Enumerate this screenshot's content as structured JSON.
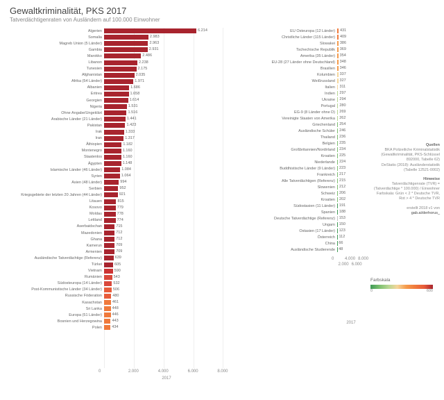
{
  "title": "Gewaltkriminalität, PKS 2017",
  "subtitle": "Tatverdächtigenraten von Ausländern auf 100.000 Einwohner",
  "axis_label": "2017",
  "left_axis_ticks": [
    0,
    2000,
    4000,
    6000,
    8000
  ],
  "left_axis_tick_labels": [
    "0",
    "2.000",
    "4.000",
    "6.000",
    "8.000"
  ],
  "right_axis_ticks": [
    0,
    2000,
    4000,
    6000,
    8000
  ],
  "left_max": 8400,
  "right_max": 8400,
  "colors": {
    "dark_red": "#a8242e",
    "mid_red_a": "#c33",
    "mid_red_b": "#d9483b",
    "orange_red": "#e85c3a",
    "orange": "#f07a3c",
    "lt_orange": "#f59b4c",
    "cream": "#f5d69b",
    "lt_green": "#b6d692",
    "green": "#7cbf6f",
    "dk_green": "#3f9b56",
    "grey": "#bfbfbf"
  },
  "left_data": [
    {
      "label": "Algerien",
      "value": 6214,
      "val_fmt": "6.214",
      "c": "dark_red"
    },
    {
      "label": "Somalia",
      "value": 2983,
      "val_fmt": "2.983",
      "c": "dark_red"
    },
    {
      "label": "Magreb Union (5 Länder)",
      "value": 2963,
      "val_fmt": "2.963",
      "c": "dark_red"
    },
    {
      "label": "Gambia",
      "value": 2931,
      "val_fmt": "2.931",
      "c": "dark_red"
    },
    {
      "label": "Marokko",
      "value": 2486,
      "val_fmt": "2.486",
      "c": "dark_red"
    },
    {
      "label": "Libanon",
      "value": 2238,
      "val_fmt": "2.238",
      "c": "dark_red"
    },
    {
      "label": "Tunesien",
      "value": 2175,
      "val_fmt": "2.175",
      "c": "dark_red"
    },
    {
      "label": "Afghanistan",
      "value": 2035,
      "val_fmt": "2.035",
      "c": "dark_red"
    },
    {
      "label": "Afrika (54 Länder)",
      "value": 1971,
      "val_fmt": "1.971",
      "c": "dark_red"
    },
    {
      "label": "Albanien",
      "value": 1686,
      "val_fmt": "1.686",
      "c": "dark_red"
    },
    {
      "label": "Eritrea",
      "value": 1658,
      "val_fmt": "1.658",
      "c": "dark_red"
    },
    {
      "label": "Georgien",
      "value": 1614,
      "val_fmt": "1.614",
      "c": "dark_red"
    },
    {
      "label": "Nigeria",
      "value": 1531,
      "val_fmt": "1.531",
      "c": "dark_red"
    },
    {
      "label": "Ohne Angabe/Ungeklärt",
      "value": 1516,
      "val_fmt": "1.516",
      "c": "dark_red"
    },
    {
      "label": "Arabische Länder (21 Länder)",
      "value": 1441,
      "val_fmt": "1.441",
      "c": "dark_red"
    },
    {
      "label": "Pakistan",
      "value": 1423,
      "val_fmt": "1.423",
      "c": "dark_red"
    },
    {
      "label": "Irak",
      "value": 1333,
      "val_fmt": "1.333",
      "c": "dark_red"
    },
    {
      "label": "Iran",
      "value": 1317,
      "val_fmt": "1.317",
      "c": "dark_red"
    },
    {
      "label": "Äthiopien",
      "value": 1182,
      "val_fmt": "1.182",
      "c": "dark_red"
    },
    {
      "label": "Montenegro",
      "value": 1160,
      "val_fmt": "1.160",
      "c": "dark_red"
    },
    {
      "label": "Staatenlos",
      "value": 1160,
      "val_fmt": "1.160",
      "c": "dark_red"
    },
    {
      "label": "Ägypten",
      "value": 1148,
      "val_fmt": "1.148",
      "c": "dark_red"
    },
    {
      "label": "Islamische Länder (46 Länder)",
      "value": 1084,
      "val_fmt": "1.084",
      "c": "dark_red"
    },
    {
      "label": "Syrien",
      "value": 1064,
      "val_fmt": "1.064",
      "c": "dark_red"
    },
    {
      "label": "Asien (48 Länder)",
      "value": 994,
      "val_fmt": "994",
      "c": "dark_red"
    },
    {
      "label": "Serbien",
      "value": 952,
      "val_fmt": "952",
      "c": "dark_red"
    },
    {
      "label": "Kriegsgebiete der letzten 20 Jahren (44 Länder)",
      "value": 921,
      "val_fmt": "921",
      "c": "dark_red"
    },
    {
      "label": "Litauen",
      "value": 815,
      "val_fmt": "815",
      "c": "dark_red"
    },
    {
      "label": "Kosovo",
      "value": 779,
      "val_fmt": "779",
      "c": "dark_red"
    },
    {
      "label": "Moldau",
      "value": 778,
      "val_fmt": "778",
      "c": "dark_red"
    },
    {
      "label": "Lettland",
      "value": 774,
      "val_fmt": "774",
      "c": "dark_red"
    },
    {
      "label": "Aserbaidschan",
      "value": 715,
      "val_fmt": "715",
      "c": "dark_red"
    },
    {
      "label": "Mazedonien",
      "value": 712,
      "val_fmt": "712",
      "c": "dark_red"
    },
    {
      "label": "Ghana",
      "value": 712,
      "val_fmt": "712",
      "c": "dark_red"
    },
    {
      "label": "Kamerun",
      "value": 709,
      "val_fmt": "709",
      "c": "dark_red"
    },
    {
      "label": "Armenien",
      "value": 709,
      "val_fmt": "709",
      "c": "dark_red"
    },
    {
      "label": "Ausländische Tatverdächtige (Referenz)",
      "value": 639,
      "val_fmt": "639",
      "c": "dark_red"
    },
    {
      "label": "Türkei",
      "value": 605,
      "val_fmt": "605",
      "c": "dark_red"
    },
    {
      "label": "Vietnam",
      "value": 590,
      "val_fmt": "590",
      "c": "mid_red_a"
    },
    {
      "label": "Rumänien",
      "value": 543,
      "val_fmt": "543",
      "c": "mid_red_b"
    },
    {
      "label": "Südosteuropa (14 Länder)",
      "value": 532,
      "val_fmt": "532",
      "c": "mid_red_b"
    },
    {
      "label": "Post-Kommunistische Länder (34 Länder)",
      "value": 506,
      "val_fmt": "506",
      "c": "orange_red"
    },
    {
      "label": "Russische Föderation",
      "value": 480,
      "val_fmt": "480",
      "c": "orange_red"
    },
    {
      "label": "Kasachstan",
      "value": 461,
      "val_fmt": "461",
      "c": "orange"
    },
    {
      "label": "Sri Lanka",
      "value": 448,
      "val_fmt": "448",
      "c": "orange"
    },
    {
      "label": "Europa (51 Länder)",
      "value": 446,
      "val_fmt": "446",
      "c": "orange"
    },
    {
      "label": "Bosnien und Herzegowina",
      "value": 443,
      "val_fmt": "443",
      "c": "orange"
    },
    {
      "label": "Polen",
      "value": 434,
      "val_fmt": "434",
      "c": "orange"
    }
  ],
  "right_data": [
    {
      "label": "EU Osteuropa (12 Länder)",
      "value": 431,
      "val_fmt": "431",
      "c": "orange"
    },
    {
      "label": "Christliche Länder (115 Länder)",
      "value": 409,
      "val_fmt": "409",
      "c": "orange"
    },
    {
      "label": "Slowakei",
      "value": 386,
      "val_fmt": "386",
      "c": "lt_orange"
    },
    {
      "label": "Tschechische Republik",
      "value": 369,
      "val_fmt": "369",
      "c": "lt_orange"
    },
    {
      "label": "Amerika (35 Länder)",
      "value": 354,
      "val_fmt": "354",
      "c": "lt_orange"
    },
    {
      "label": "EU-28 (27 Länder ohne Deutschland)",
      "value": 348,
      "val_fmt": "348",
      "c": "lt_orange"
    },
    {
      "label": "Brasilien",
      "value": 346,
      "val_fmt": "346",
      "c": "lt_orange"
    },
    {
      "label": "Kolumbien",
      "value": 337,
      "val_fmt": "337",
      "c": "cream"
    },
    {
      "label": "Weißrussland",
      "value": 327,
      "val_fmt": "327",
      "c": "cream"
    },
    {
      "label": "Italien",
      "value": 311,
      "val_fmt": "311",
      "c": "cream"
    },
    {
      "label": "Indien",
      "value": 297,
      "val_fmt": "297",
      "c": "lt_green"
    },
    {
      "label": "Ukraine",
      "value": 294,
      "val_fmt": "294",
      "c": "lt_green"
    },
    {
      "label": "Portugal",
      "value": 280,
      "val_fmt": "280",
      "c": "lt_green"
    },
    {
      "label": "EG-9 (8 Länder ohne D)",
      "value": 269,
      "val_fmt": "269",
      "c": "lt_green"
    },
    {
      "label": "Vereinigte Staaten von Amerika",
      "value": 262,
      "val_fmt": "262",
      "c": "lt_green"
    },
    {
      "label": "Griechenland",
      "value": 254,
      "val_fmt": "254",
      "c": "green"
    },
    {
      "label": "Ausländische Schüler",
      "value": 246,
      "val_fmt": "246",
      "c": "green"
    },
    {
      "label": "Thailand",
      "value": 236,
      "val_fmt": "236",
      "c": "green"
    },
    {
      "label": "Belgien",
      "value": 235,
      "val_fmt": "235",
      "c": "green"
    },
    {
      "label": "Großbritannien/Nordirland",
      "value": 234,
      "val_fmt": "234",
      "c": "green"
    },
    {
      "label": "Kroatien",
      "value": 225,
      "val_fmt": "225",
      "c": "green"
    },
    {
      "label": "Niederlande",
      "value": 224,
      "val_fmt": "224",
      "c": "green"
    },
    {
      "label": "Buddhistische Länder (9 Länder)",
      "value": 223,
      "val_fmt": "223",
      "c": "green"
    },
    {
      "label": "Frankreich",
      "value": 217,
      "val_fmt": "217",
      "c": "green"
    },
    {
      "label": "Alle Tatverdächtigen (Referenz)",
      "value": 215,
      "val_fmt": "215",
      "c": "green"
    },
    {
      "label": "Slowenien",
      "value": 212,
      "val_fmt": "212",
      "c": "green"
    },
    {
      "label": "Schweiz",
      "value": 206,
      "val_fmt": "206",
      "c": "green"
    },
    {
      "label": "Kroatien",
      "value": 202,
      "val_fmt": "202",
      "c": "green"
    },
    {
      "label": "Südostasien (11 Länder)",
      "value": 191,
      "val_fmt": "191",
      "c": "dk_green"
    },
    {
      "label": "Spanien",
      "value": 188,
      "val_fmt": "188",
      "c": "dk_green"
    },
    {
      "label": "Deutsche Tatverdächtige (Referenz)",
      "value": 153,
      "val_fmt": "153",
      "c": "grey"
    },
    {
      "label": "Ungarn",
      "value": 150,
      "val_fmt": "150",
      "c": "dk_green"
    },
    {
      "label": "Ostasien (17 Länder)",
      "value": 123,
      "val_fmt": "123",
      "c": "dk_green"
    },
    {
      "label": "Österreich",
      "value": 112,
      "val_fmt": "112",
      "c": "dk_green"
    },
    {
      "label": "China",
      "value": 66,
      "val_fmt": "66",
      "c": "dk_green"
    },
    {
      "label": "Ausländische Studierende",
      "value": 48,
      "val_fmt": "48",
      "c": "dk_green"
    }
  ],
  "notes": {
    "q_hdr": "Quellen",
    "q1": "BKA Polizeiliche Kriminalstatistik",
    "q2": "(Gewaltkriminalität, PKS-Schlüssel 892000, Tabelle 62)",
    "q3": "DeStatis (2018): Ausländerstatistik (Tabelle 12521-0002)",
    "h_hdr": "Hinweise",
    "h1": "Tatverdächtigenrate (TVR) = (Tatverdächtige * 100.000) / Einwohner",
    "h2": "Farbskala: Grün < 2 * Deutsche TVR, Rot > 4 * Deutsche TVR",
    "cr": "erstellt 2018 v1 von",
    "cr2": "gab.ai/derhorus_"
  },
  "colorscale": {
    "label": "Farbskala",
    "min": 0,
    "max": 600,
    "ticks": [
      "0",
      "600"
    ]
  }
}
